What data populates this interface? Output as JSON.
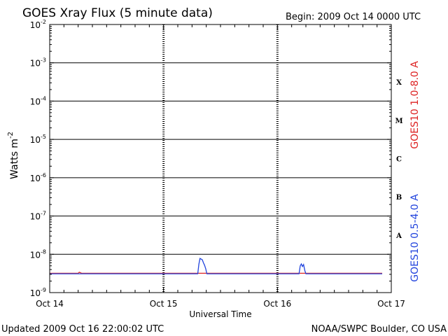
{
  "chart_data": {
    "type": "line",
    "title": "GOES Xray Flux (5 minute data)",
    "begin_label": "Begin:  2009 Oct 14 0000 UTC",
    "xlabel": "Universal Time",
    "ylabel": "Watts m",
    "ylabel_exponent": "-2",
    "yscale": "log",
    "ylim": [
      1e-09,
      0.01
    ],
    "y_ticks": [
      {
        "base": "10",
        "exp": "-9",
        "value": 1e-09
      },
      {
        "base": "10",
        "exp": "-8",
        "value": 1e-08
      },
      {
        "base": "10",
        "exp": "-7",
        "value": 1e-07
      },
      {
        "base": "10",
        "exp": "-6",
        "value": 1e-06
      },
      {
        "base": "10",
        "exp": "-5",
        "value": 1e-05
      },
      {
        "base": "10",
        "exp": "-4",
        "value": 0.0001
      },
      {
        "base": "10",
        "exp": "-3",
        "value": 0.001
      },
      {
        "base": "10",
        "exp": "-2",
        "value": 0.01
      }
    ],
    "xlim": [
      "Oct 14",
      "Oct 17"
    ],
    "x_ticks": [
      {
        "label": "Oct 14",
        "day": 0
      },
      {
        "label": "Oct 15",
        "day": 1
      },
      {
        "label": "Oct 16",
        "day": 2
      },
      {
        "label": "Oct 17",
        "day": 3
      }
    ],
    "flare_classes": [
      {
        "label": "X",
        "value": 0.0001
      },
      {
        "label": "M",
        "value": 1e-05
      },
      {
        "label": "C",
        "value": 1e-06
      },
      {
        "label": "B",
        "value": 1e-07
      },
      {
        "label": "A",
        "value": 1e-08
      }
    ],
    "grid": "horizontal lines at each decade; dotted verticals at day boundaries",
    "series": [
      {
        "name": "GOES10 1.0-8.0 A",
        "color": "#dd2222",
        "points": [
          [
            0.0,
            3.2e-09
          ],
          [
            0.25,
            3.2e-09
          ],
          [
            0.26,
            3.4e-09
          ],
          [
            0.28,
            3.2e-09
          ],
          [
            2.92,
            3.2e-09
          ]
        ]
      },
      {
        "name": "GOES10 0.5-4.0 A",
        "color": "#2244dd",
        "points": [
          [
            0.0,
            3.1e-09
          ],
          [
            1.3,
            3.1e-09
          ],
          [
            1.31,
            5.5e-09
          ],
          [
            1.32,
            7.8e-09
          ],
          [
            1.34,
            7.2e-09
          ],
          [
            1.35,
            6e-09
          ],
          [
            1.36,
            5.2e-09
          ],
          [
            1.37,
            4.2e-09
          ],
          [
            1.38,
            3.1e-09
          ],
          [
            2.19,
            3.1e-09
          ],
          [
            2.2,
            5e-09
          ],
          [
            2.21,
            5.6e-09
          ],
          [
            2.22,
            4.8e-09
          ],
          [
            2.23,
            5.4e-09
          ],
          [
            2.24,
            3.8e-09
          ],
          [
            2.25,
            3.1e-09
          ],
          [
            2.92,
            3.1e-09
          ]
        ]
      }
    ]
  },
  "footer": {
    "updated": "Updated 2009 Oct 16 22:00:02 UTC",
    "source": "NOAA/SWPC Boulder, CO USA"
  }
}
